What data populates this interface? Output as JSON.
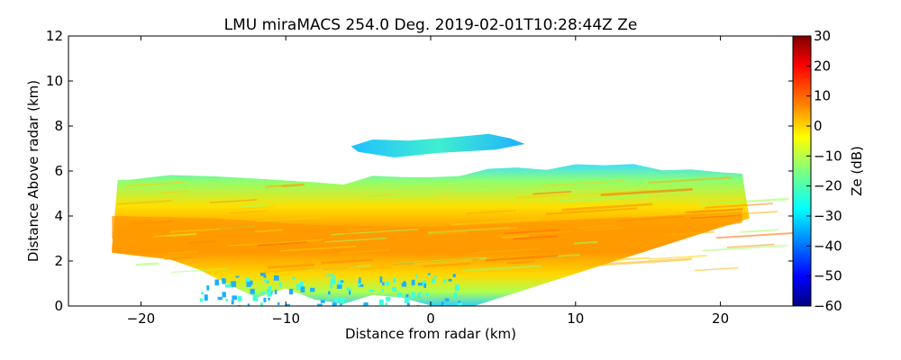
{
  "chart_data": {
    "type": "heatmap",
    "title": "LMU miraMACS 254.0 Deg. 2019-02-01T10:28:44Z  Ze",
    "xlabel": "Distance from radar (km)",
    "ylabel": "Distance Above radar  (km)",
    "xlim": [
      -25,
      25
    ],
    "ylim": [
      0,
      12
    ],
    "x_ticks": [
      -20,
      -10,
      0,
      10,
      20
    ],
    "x_tick_labels": [
      "−20",
      "−10",
      "0",
      "10",
      "20"
    ],
    "y_ticks": [
      0,
      2,
      4,
      6,
      8,
      10,
      12
    ],
    "y_tick_labels": [
      "0",
      "2",
      "4",
      "6",
      "8",
      "10",
      "12"
    ],
    "colorbar": {
      "label": "Ze (dB)",
      "range": [
        -60,
        30
      ],
      "ticks": [
        30,
        20,
        10,
        0,
        -10,
        -20,
        -30,
        -40,
        -50,
        -60
      ],
      "tick_labels": [
        "30",
        "20",
        "10",
        "0",
        "−10",
        "−20",
        "−30",
        "−40",
        "−50",
        "−60"
      ],
      "colormap": "jet"
    },
    "features": [
      {
        "name": "main-echo-layer",
        "x_range": [
          -22,
          22
        ],
        "height_top_km": 6.0,
        "height_bottom_km": 0.0,
        "core_height_km": 3.2,
        "ze_core_db": 12,
        "ze_edge_db": -22
      },
      {
        "name": "upper-cloud-layer",
        "x_range": [
          -5.5,
          6.5
        ],
        "height_km": 7.1,
        "ze_db": -25
      }
    ],
    "colors": {
      "jet_stops": [
        "#00007f",
        "#0000ff",
        "#007fff",
        "#00ffff",
        "#7fff7f",
        "#ffff00",
        "#ff7f00",
        "#ff0000",
        "#7f0000"
      ]
    }
  }
}
